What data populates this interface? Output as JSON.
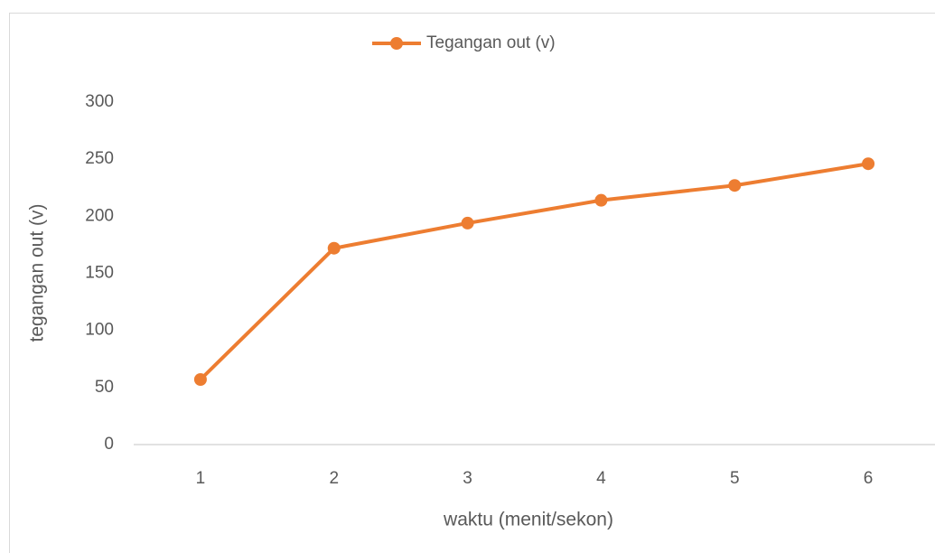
{
  "chart_data": {
    "type": "line",
    "categories": [
      "1",
      "2",
      "3",
      "4",
      "5",
      "6"
    ],
    "series": [
      {
        "name": "Tegangan out (v)",
        "color": "#ed7d31",
        "values": [
          57,
          172,
          194,
          214,
          227,
          246
        ]
      }
    ],
    "x_label": "waktu (menit/sekon)",
    "y_label": "tegangan out (v)",
    "ylim": [
      0,
      300
    ],
    "yticks": [
      0,
      50,
      100,
      150,
      200,
      250,
      300
    ],
    "grid": false,
    "legend": "top"
  }
}
